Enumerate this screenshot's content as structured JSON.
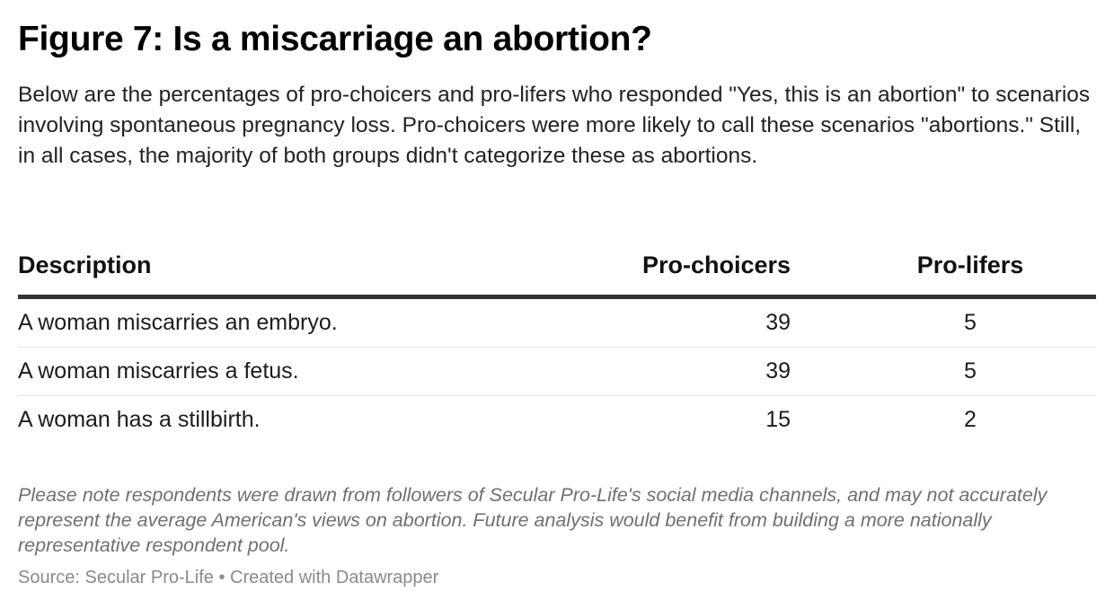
{
  "chart_data": {
    "type": "table",
    "title": "Figure 7: Is a miscarriage an abortion?",
    "subtitle": "Below are the percentages of pro-choicers and pro-lifers who responded \"Yes, this is an abortion\" to scenarios involving spontaneous pregnancy loss. Pro-choicers were more likely to call these scenarios \"abortions.\" Still, in all cases, the majority of both groups didn't categorize these as abortions.",
    "columns": [
      "Description",
      "Pro-choicers",
      "Pro-lifers"
    ],
    "rows": [
      {
        "description": "A woman miscarries an embryo.",
        "pro_choicers": 39,
        "pro_lifers": 5
      },
      {
        "description": "A woman miscarries a fetus.",
        "pro_choicers": 39,
        "pro_lifers": 5
      },
      {
        "description": "A woman has a stillbirth.",
        "pro_choicers": 15,
        "pro_lifers": 2
      }
    ],
    "note": "Please note respondents were drawn from followers of Secular Pro-Life's social media channels, and may not accurately represent the average American's views on abortion. Future analysis would benefit from building a more nationally representative respondent pool.",
    "source": "Source: Secular Pro-Life • Created with Datawrapper"
  },
  "colors": {
    "header_rule": "#333333",
    "row_divider": "#e5e5e5",
    "note_text": "#707070",
    "source_text": "#8a8a8a"
  }
}
